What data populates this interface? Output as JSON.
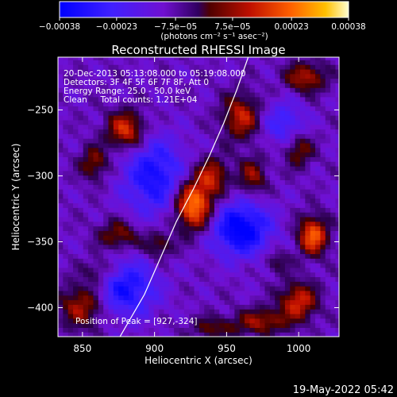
{
  "chart_data": {
    "type": "heatmap",
    "title": "Reconstructed RHESSI Image",
    "xlabel": "Heliocentric X (arcsec)",
    "ylabel": "Heliocentric Y (arcsec)",
    "xlim": [
      833,
      1028
    ],
    "ylim": [
      -422,
      -210
    ],
    "x_ticks": [
      850,
      900,
      950,
      1000
    ],
    "x_tick_labels": [
      "850",
      "900",
      "950",
      "1000"
    ],
    "y_ticks": [
      -250,
      -300,
      -350,
      -400
    ],
    "y_tick_labels": [
      "−250",
      "−300",
      "−350",
      "−400"
    ],
    "colorbar": {
      "range": [
        -0.00038,
        0.00038
      ],
      "ticks": [
        -0.00038,
        -0.00023,
        -7.5e-05,
        7.5e-05,
        0.00023,
        0.00038
      ],
      "tick_labels": [
        "−0.00038",
        "−0.00023",
        "−7.5e−05",
        "7.5e−05",
        "0.00023",
        "0.00038"
      ],
      "units_label": "(photons cm⁻² s⁻¹ asec⁻²)"
    },
    "annotations": {
      "time_range": "20-Dec-2013 05:13:08.000 to 05:19:08.000",
      "detectors": "Detectors: 3F 4F 5F 6F 7F 8F, Att 0",
      "energy_range": "Energy Range: 25.0 - 50.0 keV",
      "method_counts": "Clean     Total counts: 1.21E+04",
      "peak_position": "Position of Peak = [927,-324]"
    },
    "peak": [
      927,
      -324
    ],
    "limb_curve": [
      [
        876,
        -422
      ],
      [
        893,
        -390
      ],
      [
        905,
        -360
      ],
      [
        915,
        -335
      ],
      [
        927,
        -310
      ],
      [
        938,
        -285
      ],
      [
        948,
        -260
      ],
      [
        957,
        -235
      ],
      [
        965,
        -210
      ]
    ],
    "sources": [
      {
        "x": 927,
        "y": -322,
        "sx": 9,
        "sy": 13,
        "amp": 1.0
      },
      {
        "x": 940,
        "y": -300,
        "sx": 8,
        "sy": 10,
        "amp": 0.55
      },
      {
        "x": 880,
        "y": -265,
        "sx": 9,
        "sy": 10,
        "amp": 0.7
      },
      {
        "x": 858,
        "y": -290,
        "sx": 7,
        "sy": 9,
        "amp": 0.45
      },
      {
        "x": 875,
        "y": -345,
        "sx": 10,
        "sy": 8,
        "amp": 0.45
      },
      {
        "x": 903,
        "y": -352,
        "sx": 7,
        "sy": 7,
        "amp": 0.4
      },
      {
        "x": 850,
        "y": -398,
        "sx": 11,
        "sy": 12,
        "amp": 0.55
      },
      {
        "x": 862,
        "y": -372,
        "sx": 8,
        "sy": 7,
        "amp": 0.35
      },
      {
        "x": 960,
        "y": -255,
        "sx": 9,
        "sy": 12,
        "amp": 0.6
      },
      {
        "x": 968,
        "y": -300,
        "sx": 7,
        "sy": 10,
        "amp": 0.45
      },
      {
        "x": 1005,
        "y": -225,
        "sx": 10,
        "sy": 8,
        "amp": 0.55
      },
      {
        "x": 1010,
        "y": -345,
        "sx": 7,
        "sy": 10,
        "amp": 0.85
      },
      {
        "x": 1000,
        "y": -280,
        "sx": 7,
        "sy": 9,
        "amp": 0.45
      },
      {
        "x": 1000,
        "y": -395,
        "sx": 9,
        "sy": 10,
        "amp": 0.65
      },
      {
        "x": 975,
        "y": -410,
        "sx": 12,
        "sy": 7,
        "amp": 0.5
      },
      {
        "x": 942,
        "y": -415,
        "sx": 12,
        "sy": 6,
        "amp": 0.35
      },
      {
        "x": 985,
        "y": -365,
        "sx": 6,
        "sy": 6,
        "amp": 0.3
      },
      {
        "x": 900,
        "y": -300,
        "sx": 15,
        "sy": 20,
        "amp": -0.6
      },
      {
        "x": 880,
        "y": -385,
        "sx": 15,
        "sy": 15,
        "amp": -0.6
      },
      {
        "x": 960,
        "y": -340,
        "sx": 14,
        "sy": 14,
        "amp": -0.8
      },
      {
        "x": 990,
        "y": -260,
        "sx": 10,
        "sy": 12,
        "amp": -0.4
      }
    ]
  },
  "footer": {
    "date_stamp": "19-May-2022 05:42"
  }
}
